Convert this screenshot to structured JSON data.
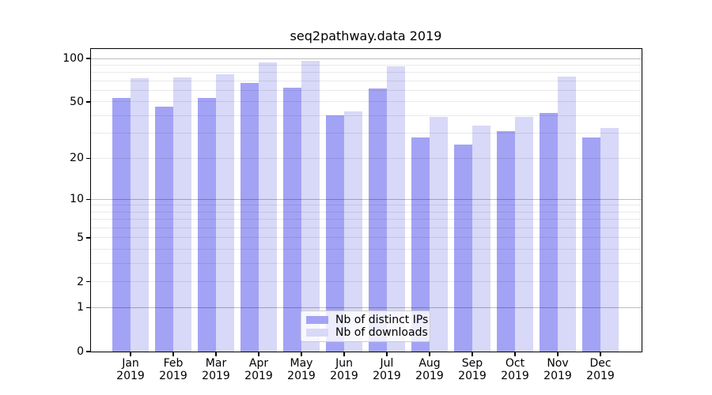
{
  "chart_data": {
    "type": "bar",
    "title": "seq2pathway.data 2019",
    "categories": [
      "Jan 2019",
      "Feb 2019",
      "Mar 2019",
      "Apr 2019",
      "May 2019",
      "Jun 2019",
      "Jul 2019",
      "Aug 2019",
      "Sep 2019",
      "Oct 2019",
      "Nov 2019",
      "Dec 2019"
    ],
    "series": [
      {
        "name": "Nb of distinct IPs",
        "color": "#a3a3f5",
        "values": [
          53,
          46,
          53,
          68,
          63,
          40,
          62,
          28,
          25,
          31,
          42,
          28
        ]
      },
      {
        "name": "Nb of downloads",
        "color": "#d8d8f8",
        "values": [
          73,
          74,
          78,
          94,
          96,
          43,
          88,
          39,
          34,
          39,
          75,
          33
        ]
      }
    ],
    "xlabel": "",
    "ylabel": "",
    "ylim": [
      0,
      100
    ],
    "y_scale": "log1p",
    "y_tick_labels": [
      "100",
      "50",
      "20",
      "10",
      "5",
      "2",
      "1",
      "0"
    ],
    "y_tick_values": [
      100,
      50,
      20,
      10,
      5,
      2,
      1,
      0
    ],
    "y_major_gridlines": [
      1,
      10,
      100
    ],
    "y_minor_gridlines": [
      2,
      3,
      4,
      5,
      6,
      7,
      8,
      9,
      20,
      30,
      40,
      50,
      60,
      70,
      80,
      90
    ],
    "grid": true,
    "legend_position": "lower center",
    "colors": {
      "bar_distinct_ips": "#a3a3f5",
      "bar_downloads": "#d8d8f8",
      "grid_major": "#bdbdbd",
      "grid_minor": "#ebebeb",
      "axis": "#000000",
      "background": "#ffffff"
    }
  }
}
